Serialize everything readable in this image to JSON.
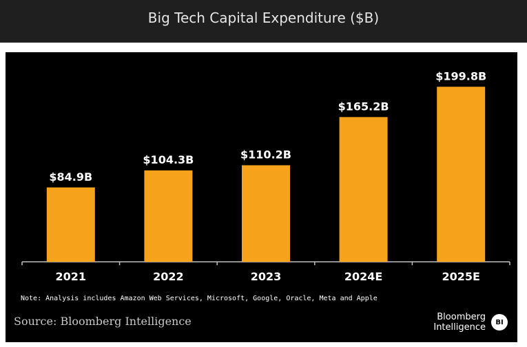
{
  "chart_data": {
    "type": "bar",
    "title": "Big Tech Capital Expenditure ($B)",
    "categories": [
      "2021",
      "2022",
      "2023",
      "2024E",
      "2025E"
    ],
    "values": [
      84.9,
      104.3,
      110.2,
      165.2,
      199.8
    ],
    "data_labels": [
      "$84.9B",
      "$104.3B",
      "$110.2B",
      "$165.2B",
      "$199.8B"
    ],
    "xlabel": "",
    "ylabel": "",
    "grid": false,
    "bar_color": "#f7a21b"
  },
  "note": "Note: Analysis includes Amazon Web Services, Microsoft, Google, Oracle, Meta and Apple",
  "source": "Source: Bloomberg Intelligence",
  "brand": {
    "line1": "Bloomberg",
    "line2": "Intelligence",
    "badge": "BI"
  },
  "colors": {
    "panel_background": "#000000",
    "title_bar_background": "#1f1f1f",
    "bar": "#f7a21b",
    "label": "#ffffff"
  }
}
